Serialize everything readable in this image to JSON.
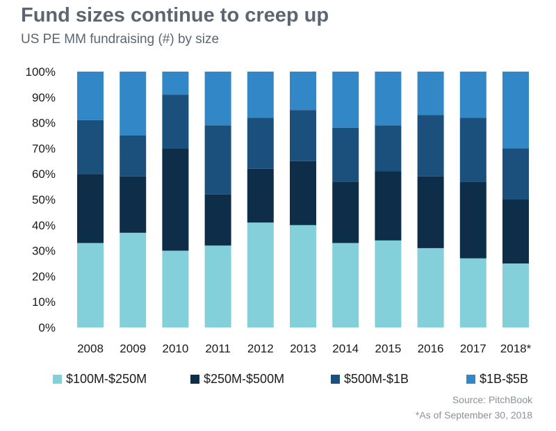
{
  "header": {
    "title": "Fund sizes continue to creep up",
    "subtitle": "US PE MM fundraising (#) by size"
  },
  "footer": {
    "source": "Source: PitchBook",
    "footnote": "*As of September 30, 2018"
  },
  "chart_data": {
    "type": "bar",
    "stacked": true,
    "normalized": true,
    "categories": [
      "2008",
      "2009",
      "2010",
      "2011",
      "2012",
      "2013",
      "2014",
      "2015",
      "2016",
      "2017",
      "2018*"
    ],
    "y_ticks": [
      "0%",
      "10%",
      "20%",
      "30%",
      "40%",
      "50%",
      "60%",
      "70%",
      "80%",
      "90%",
      "100%"
    ],
    "ylim": [
      0,
      100
    ],
    "grid": false,
    "legend_position": "bottom",
    "series": [
      {
        "name": "$100M-$250M",
        "color": "#84d0da",
        "values": [
          33,
          37,
          30,
          32,
          41,
          40,
          33,
          34,
          31,
          27,
          25
        ]
      },
      {
        "name": "$250M-$500M",
        "color": "#0e2d48",
        "values": [
          27,
          22,
          40,
          20,
          21,
          25,
          24,
          27,
          28,
          30,
          25
        ]
      },
      {
        "name": "$500M-$1B",
        "color": "#1b507d",
        "values": [
          21,
          16,
          21,
          27,
          20,
          20,
          21,
          18,
          24,
          25,
          20
        ]
      },
      {
        "name": "$1B-$5B",
        "color": "#3288c6",
        "values": [
          19,
          25,
          9,
          21,
          18,
          15,
          22,
          21,
          17,
          18,
          30
        ]
      }
    ]
  }
}
